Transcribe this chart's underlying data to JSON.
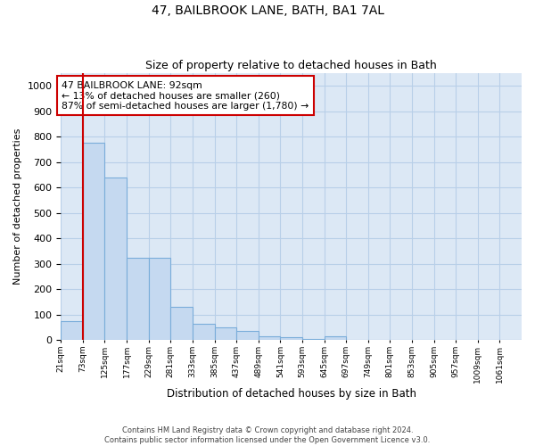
{
  "title": "47, BAILBROOK LANE, BATH, BA1 7AL",
  "subtitle": "Size of property relative to detached houses in Bath",
  "xlabel": "Distribution of detached houses by size in Bath",
  "ylabel": "Number of detached properties",
  "footer_line1": "Contains HM Land Registry data © Crown copyright and database right 2024.",
  "footer_line2": "Contains public sector information licensed under the Open Government Licence v3.0.",
  "annotation_line1": "47 BAILBROOK LANE: 92sqm",
  "annotation_line2": "← 13% of detached houses are smaller (260)",
  "annotation_line3": "87% of semi-detached houses are larger (1,780) →",
  "bar_color": "#c5d9f0",
  "bar_edge_color": "#7aadda",
  "vline_color": "#cc0000",
  "vline_x": 1,
  "annotation_box_color": "#cc0000",
  "bin_edges": [
    21,
    73,
    125,
    177,
    229,
    281,
    333,
    385,
    437,
    489,
    541,
    593,
    645,
    697,
    749,
    801,
    853,
    905,
    957,
    1009,
    1061,
    1113
  ],
  "values": [
    75,
    775,
    640,
    325,
    325,
    130,
    65,
    50,
    35,
    15,
    10,
    5,
    15,
    0,
    0,
    0,
    0,
    0,
    0,
    0,
    0
  ],
  "ylim": [
    0,
    1050
  ],
  "yticks": [
    0,
    100,
    200,
    300,
    400,
    500,
    600,
    700,
    800,
    900,
    1000
  ],
  "bg_color": "#dce8f5",
  "plot_bg_color": "#ffffff",
  "grid_color": "#b8cfe8",
  "tick_labels": [
    "21sqm",
    "73sqm",
    "125sqm",
    "177sqm",
    "229sqm",
    "281sqm",
    "333sqm",
    "385sqm",
    "437sqm",
    "489sqm",
    "541sqm",
    "593sqm",
    "645sqm",
    "697sqm",
    "749sqm",
    "801sqm",
    "853sqm",
    "905sqm",
    "957sqm",
    "1009sqm",
    "1061sqm"
  ]
}
